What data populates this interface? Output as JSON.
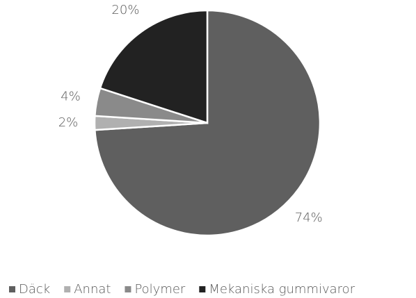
{
  "chart_data": {
    "type": "pie",
    "categories": [
      "Däck",
      "Annat",
      "Polymer",
      "Mekaniska gummivaror"
    ],
    "values": [
      74,
      2,
      4,
      20
    ],
    "value_labels": [
      "74%",
      "2%",
      "4%",
      "20%"
    ],
    "colors": [
      "#5f5f5f",
      "#b0b0b0",
      "#8a8a8a",
      "#222222"
    ],
    "legend": "bottom"
  }
}
